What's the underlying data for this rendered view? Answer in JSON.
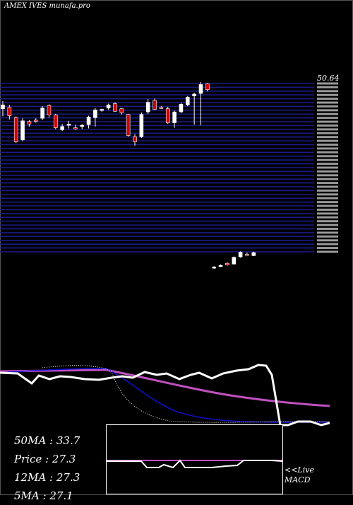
{
  "header": {
    "title": "AMEX IVES munafa.pro"
  },
  "stats": {
    "ma50": "50MA : 33.7",
    "price": "Price   : 27.3",
    "ma12": "12MA : 27.3",
    "ma5": "5MA : 27.1"
  },
  "macd": {
    "live": "<<Live",
    "label": "MACD"
  },
  "chart_data": {
    "type": "candlestick",
    "title": "AMEX IVES munafa.pro",
    "price_label": "50.64",
    "colors": {
      "background": "#000000",
      "grid": "#1a1a8c",
      "up": "#ffffff",
      "down": "#cc0000",
      "ma_short": "#ffffff",
      "ma_mid": "#1010d0",
      "ma_long": "#c050c0"
    },
    "candles": [
      {
        "o": 48.0,
        "h": 49.2,
        "l": 46.8,
        "c": 48.6
      },
      {
        "o": 48.2,
        "h": 48.6,
        "l": 46.3,
        "c": 46.9
      },
      {
        "o": 46.6,
        "h": 46.8,
        "l": 42.6,
        "c": 42.8
      },
      {
        "o": 43.1,
        "h": 46.5,
        "l": 42.9,
        "c": 46.1
      },
      {
        "o": 46.0,
        "h": 46.2,
        "l": 45.2,
        "c": 45.6
      },
      {
        "o": 46.2,
        "h": 46.5,
        "l": 45.8,
        "c": 46.0
      },
      {
        "o": 46.5,
        "h": 48.4,
        "l": 46.2,
        "c": 48.1
      },
      {
        "o": 48.5,
        "h": 48.7,
        "l": 46.6,
        "c": 47.0
      },
      {
        "o": 47.0,
        "h": 47.2,
        "l": 44.8,
        "c": 45.0
      },
      {
        "o": 44.7,
        "h": 45.6,
        "l": 44.5,
        "c": 45.2
      },
      {
        "o": 45.4,
        "h": 46.1,
        "l": 44.9,
        "c": 45.6
      },
      {
        "o": 45.0,
        "h": 45.5,
        "l": 44.7,
        "c": 44.9
      },
      {
        "o": 45.2,
        "h": 45.6,
        "l": 44.8,
        "c": 45.4
      },
      {
        "o": 45.5,
        "h": 46.9,
        "l": 44.9,
        "c": 46.7
      },
      {
        "o": 46.6,
        "h": 48.1,
        "l": 45.2,
        "c": 47.8
      },
      {
        "o": 47.8,
        "h": 48.0,
        "l": 47.5,
        "c": 47.9
      },
      {
        "o": 48.1,
        "h": 48.8,
        "l": 47.8,
        "c": 48.6
      },
      {
        "o": 48.8,
        "h": 49.0,
        "l": 47.5,
        "c": 47.6
      },
      {
        "o": 48.0,
        "h": 48.1,
        "l": 47.1,
        "c": 47.4
      },
      {
        "o": 47.1,
        "h": 47.2,
        "l": 43.6,
        "c": 43.8
      },
      {
        "o": 43.6,
        "h": 44.0,
        "l": 42.2,
        "c": 42.8
      },
      {
        "o": 43.6,
        "h": 47.4,
        "l": 43.4,
        "c": 47.1
      },
      {
        "o": 47.5,
        "h": 49.5,
        "l": 47.2,
        "c": 49.0
      },
      {
        "o": 49.3,
        "h": 49.6,
        "l": 47.8,
        "c": 47.9
      },
      {
        "o": 48.2,
        "h": 48.4,
        "l": 48.0,
        "c": 48.1
      },
      {
        "o": 48.0,
        "h": 48.3,
        "l": 45.6,
        "c": 45.8
      },
      {
        "o": 45.8,
        "h": 47.7,
        "l": 45.0,
        "c": 47.5
      },
      {
        "o": 47.5,
        "h": 48.9,
        "l": 47.3,
        "c": 48.7
      },
      {
        "o": 48.6,
        "h": 50.0,
        "l": 48.4,
        "c": 49.8
      },
      {
        "o": 50.0,
        "h": 50.5,
        "l": 45.5,
        "c": 50.3
      },
      {
        "o": 50.4,
        "h": 52.2,
        "l": 45.4,
        "c": 51.8
      },
      {
        "o": 51.9,
        "h": 52.0,
        "l": 50.7,
        "c": 51.0
      },
      {
        "o": 27.8,
        "h": 28.1,
        "l": 27.5,
        "c": 27.9
      },
      {
        "o": 28.0,
        "h": 28.5,
        "l": 27.9,
        "c": 28.3
      },
      {
        "o": 28.8,
        "h": 29.0,
        "l": 28.2,
        "c": 28.4
      },
      {
        "o": 28.6,
        "h": 30.4,
        "l": 28.5,
        "c": 30.2
      },
      {
        "o": 30.3,
        "h": 31.6,
        "l": 30.1,
        "c": 31.4
      },
      {
        "o": 30.9,
        "h": 31.3,
        "l": 30.6,
        "c": 30.8
      },
      {
        "o": 30.6,
        "h": 31.5,
        "l": 30.5,
        "c": 31.3
      }
    ]
  }
}
